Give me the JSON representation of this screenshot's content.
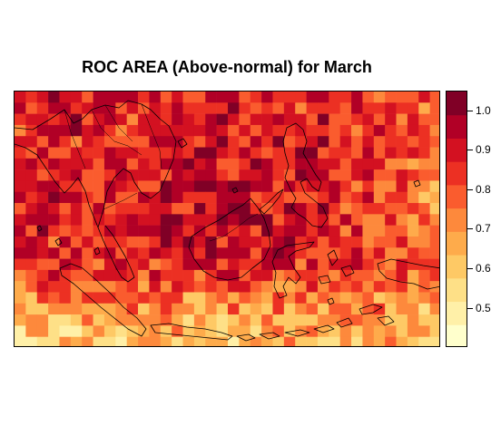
{
  "title": "ROC AREA (Above-normal) for March",
  "legend": {
    "min": 0.4,
    "max": 1.05,
    "ticks": [
      {
        "value": 1.0,
        "label": "1.0"
      },
      {
        "value": 0.9,
        "label": "0.9"
      },
      {
        "value": 0.8,
        "label": "0.8"
      },
      {
        "value": 0.7,
        "label": "0.7"
      },
      {
        "value": 0.6,
        "label": "0.6"
      },
      {
        "value": 0.5,
        "label": "0.5"
      }
    ],
    "colors": [
      "#ffffcc",
      "#fff0a8",
      "#fee087",
      "#fec965",
      "#feab4b",
      "#fd893c",
      "#fa5c2e",
      "#ec3023",
      "#d31121",
      "#b10026",
      "#800026"
    ]
  },
  "map": {
    "grid_columns": 38,
    "grid_rows": 23,
    "coastline_color": "#000000"
  }
}
